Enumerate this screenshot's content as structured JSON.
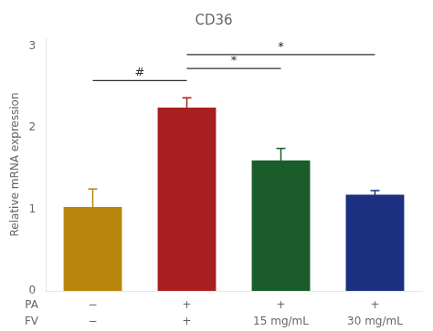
{
  "chart_data": {
    "type": "bar",
    "title": "CD36",
    "ylabel": "Relative mRNA expression",
    "categories": [
      [
        "−",
        "−"
      ],
      [
        "+",
        "+"
      ],
      [
        "+",
        "15 mg/mL"
      ],
      [
        "+",
        "30 mg/mL"
      ]
    ],
    "row_labels": [
      "PA",
      "FV"
    ],
    "values": [
      1.03,
      2.25,
      1.6,
      1.18
    ],
    "errors": [
      0.22,
      0.12,
      0.15,
      0.05
    ],
    "colors": [
      "#B8860B",
      "#A91E1E",
      "#1A5C2A",
      "#1B3080"
    ],
    "ylim": [
      0,
      3.1
    ],
    "yticks": [
      0,
      1,
      2,
      3
    ],
    "grid": false,
    "annotations": [
      {
        "x1": 0,
        "x2": 1,
        "y": 2.58,
        "label": "#",
        "color": "#2e2e2e"
      },
      {
        "x1": 1,
        "x2": 2,
        "y": 2.73,
        "label": "*",
        "color": "#2e2e2e"
      },
      {
        "x1": 1,
        "x2": 3,
        "y": 2.9,
        "label": "*",
        "color": "#2e2e2e"
      }
    ]
  }
}
